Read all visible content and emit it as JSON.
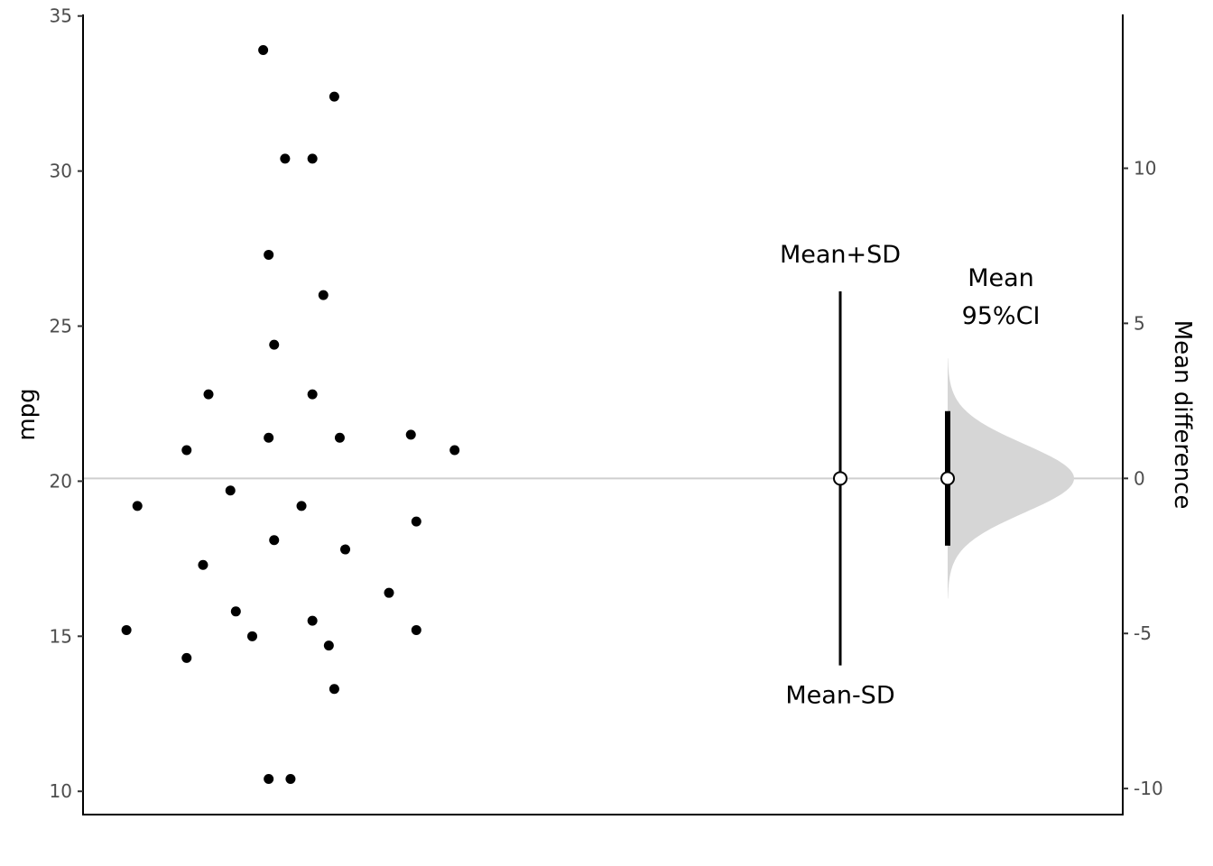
{
  "chart_data": {
    "type": "scatter",
    "ylabel": "mpg",
    "ylabel_right": "Mean difference",
    "ylim": [
      9.25,
      35.05
    ],
    "yticks": [
      10,
      15,
      20,
      25,
      30,
      35
    ],
    "yticks_right": [
      -10,
      -5,
      0,
      5,
      10
    ],
    "grid": false,
    "values": [
      21.0,
      21.0,
      22.8,
      21.4,
      18.7,
      18.1,
      14.3,
      24.4,
      22.8,
      19.2,
      17.8,
      16.4,
      17.3,
      15.2,
      10.4,
      10.4,
      14.7,
      32.4,
      30.4,
      33.9,
      21.5,
      15.5,
      15.2,
      13.3,
      19.2,
      27.3,
      26.0,
      30.4,
      15.8,
      19.7,
      15.0,
      21.4
    ],
    "x_jitter": [
      0.62,
      0.13,
      0.17,
      0.41,
      0.55,
      0.29,
      0.13,
      0.29,
      0.36,
      0.04,
      0.42,
      0.5,
      0.16,
      0.02,
      0.28,
      0.32,
      0.39,
      0.4,
      0.31,
      0.27,
      0.54,
      0.36,
      0.55,
      0.4,
      0.34,
      0.28,
      0.38,
      0.36,
      0.22,
      0.21,
      0.25,
      0.28
    ],
    "mean": 20.09,
    "sd": 6.03,
    "ci95": [
      17.92,
      22.26
    ],
    "annotations": {
      "upper": "Mean+SD",
      "lower": "Mean-SD",
      "ci_line1": "Mean",
      "ci_line2": "95%CI"
    }
  }
}
